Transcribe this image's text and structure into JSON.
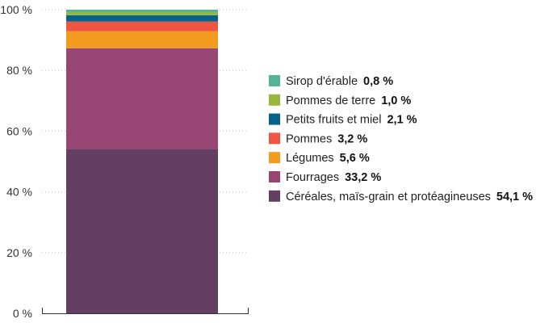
{
  "chart_data": {
    "type": "bar",
    "stacked": true,
    "ylim": [
      0,
      100
    ],
    "y_ticks": [
      "0 %",
      "20 %",
      "40 %",
      "60 %",
      "80 %",
      "100 %"
    ],
    "y_tick_values": [
      0,
      20,
      40,
      60,
      80,
      100
    ],
    "legend_position": "right",
    "series": [
      {
        "name": "Céréales, maïs-grain et protéagineuses",
        "value": 54.1,
        "value_label": "54,1 %",
        "color": "#643f64"
      },
      {
        "name": "Fourrages",
        "value": 33.2,
        "value_label": "33,2 %",
        "color": "#974674"
      },
      {
        "name": "Légumes",
        "value": 5.6,
        "value_label": "5,6 %",
        "color": "#f29c1f"
      },
      {
        "name": "Pommes",
        "value": 3.2,
        "value_label": "3,2 %",
        "color": "#f05443"
      },
      {
        "name": "Petits fruits et miel",
        "value": 2.1,
        "value_label": "2,1 %",
        "color": "#05628a"
      },
      {
        "name": "Pommes de terre",
        "value": 1.0,
        "value_label": "1,0 %",
        "color": "#97b83c"
      },
      {
        "name": "Sirop d'érable",
        "value": 0.8,
        "value_label": "0,8 %",
        "color": "#55b397"
      }
    ]
  }
}
